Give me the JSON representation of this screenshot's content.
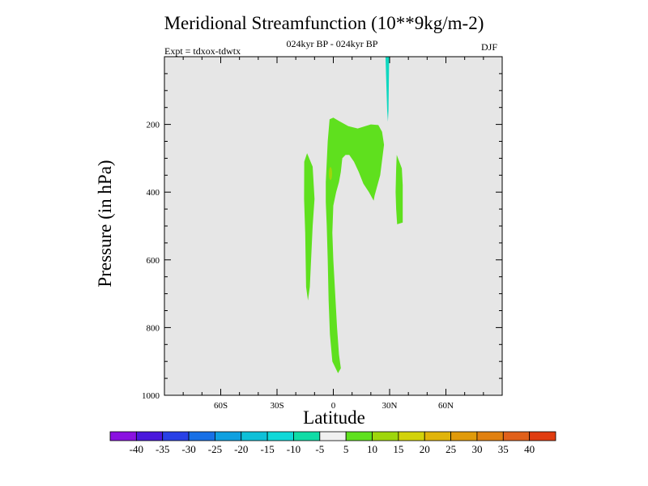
{
  "chart_data": {
    "type": "contour",
    "title": "Meridional Streamfunction (10**9kg/m-2)",
    "subtitle": "024kyr BP - 024kyr BP",
    "experiment": "Expt = tdxox-tdwtx",
    "season": "DJF",
    "xlabel": "Latitude",
    "ylabel": "Pressure (in hPa)",
    "xlim": [
      -90,
      90
    ],
    "ylim": [
      1000,
      0
    ],
    "x_ticks": [
      {
        "value": -60,
        "label": "60S"
      },
      {
        "value": -30,
        "label": "30S"
      },
      {
        "value": 0,
        "label": "0"
      },
      {
        "value": 30,
        "label": "30N"
      },
      {
        "value": 60,
        "label": "60N"
      }
    ],
    "y_ticks": [
      {
        "value": 200,
        "label": "200"
      },
      {
        "value": 400,
        "label": "400"
      },
      {
        "value": 600,
        "label": "600"
      },
      {
        "value": 800,
        "label": "800"
      },
      {
        "value": 1000,
        "label": "1000"
      }
    ],
    "background_color": "#e6e6e6",
    "regions": [
      {
        "name": "negative-cell-north",
        "range": "-10 to -5",
        "color": "#10d8c0",
        "points": [
          [
            27.8,
            0
          ],
          [
            29.8,
            0
          ],
          [
            29.6,
            70
          ],
          [
            29.4,
            160
          ],
          [
            29.1,
            192
          ],
          [
            28.7,
            160
          ],
          [
            28.2,
            70
          ]
        ]
      },
      {
        "name": "positive-cell-south",
        "range": "5 to 10",
        "color": "#5fe01e",
        "points": [
          [
            -15.5,
            310
          ],
          [
            -14,
            285
          ],
          [
            -11,
            325
          ],
          [
            -10,
            420
          ],
          [
            -11,
            500
          ],
          [
            -12.5,
            680
          ],
          [
            -13.5,
            720
          ],
          [
            -14.5,
            680
          ],
          [
            -15,
            520
          ],
          [
            -15.6,
            420
          ]
        ]
      },
      {
        "name": "positive-cell-main",
        "range": "5 to 10",
        "color": "#5fe01e",
        "points": [
          [
            -4,
            370
          ],
          [
            -3,
            250
          ],
          [
            -2,
            185
          ],
          [
            0,
            180
          ],
          [
            3,
            190
          ],
          [
            8,
            205
          ],
          [
            13,
            212
          ],
          [
            17,
            205
          ],
          [
            20,
            200
          ],
          [
            24,
            202
          ],
          [
            26,
            222
          ],
          [
            27,
            260
          ],
          [
            25,
            350
          ],
          [
            22,
            410
          ],
          [
            21.5,
            425
          ],
          [
            19,
            400
          ],
          [
            16,
            375
          ],
          [
            13.5,
            340
          ],
          [
            11,
            310
          ],
          [
            8.5,
            290
          ],
          [
            6.5,
            290
          ],
          [
            4.8,
            300
          ],
          [
            4,
            340
          ],
          [
            3,
            370
          ],
          [
            1.5,
            400
          ],
          [
            0,
            440
          ],
          [
            -0.5,
            520
          ],
          [
            0,
            600
          ],
          [
            1,
            700
          ],
          [
            2,
            800
          ],
          [
            3,
            880
          ],
          [
            4,
            920
          ],
          [
            2.5,
            935
          ],
          [
            -0.5,
            900
          ],
          [
            -1.8,
            820
          ],
          [
            -2.5,
            720
          ],
          [
            -3,
            600
          ],
          [
            -3.5,
            500
          ],
          [
            -4,
            430
          ]
        ]
      },
      {
        "name": "positive-cell-east",
        "range": "5 to 10",
        "color": "#5fe01e",
        "points": [
          [
            33.8,
            290
          ],
          [
            36.5,
            330
          ],
          [
            37,
            380
          ],
          [
            37,
            420
          ],
          [
            37,
            490
          ],
          [
            34,
            495
          ],
          [
            33.5,
            450
          ],
          [
            33.2,
            400
          ],
          [
            33.5,
            330
          ]
        ]
      }
    ],
    "highlight_spot": {
      "x": -1.5,
      "y": 345,
      "range": "10 to 15",
      "color": "#9ed60c"
    },
    "colorbar": {
      "colors": [
        "#8a12e0",
        "#4a18dc",
        "#2840e6",
        "#1870e6",
        "#0fa0e0",
        "#0fc0d8",
        "#10d8d8",
        "#10dca6",
        "#f0f0f0",
        "#5fe01e",
        "#9ed60c",
        "#d2d20a",
        "#e0b40a",
        "#e09a0a",
        "#e08010",
        "#e0601a",
        "#e03c10"
      ],
      "labels": [
        "-40",
        "-35",
        "-30",
        "-25",
        "-20",
        "-15",
        "-10",
        "-5",
        "5",
        "10",
        "15",
        "20",
        "25",
        "30",
        "35",
        "40"
      ]
    }
  }
}
